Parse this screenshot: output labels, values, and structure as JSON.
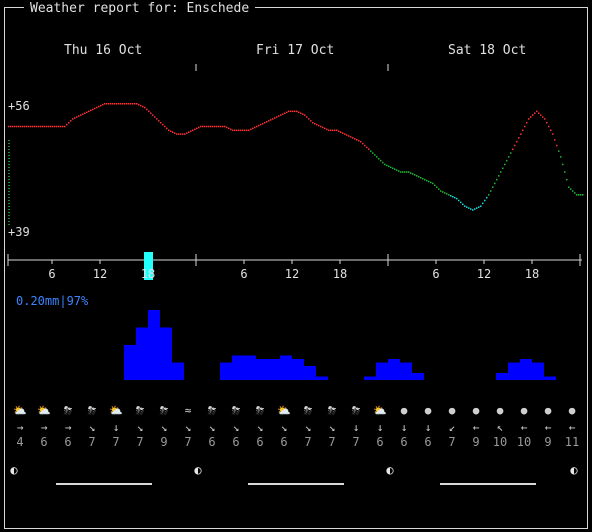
{
  "window": {
    "title": "Weather report for: Enschede"
  },
  "days": [
    "Thu 16 Oct",
    "Fri 17 Oct",
    "Sat 18 Oct"
  ],
  "temperature": {
    "max_label": "+56",
    "min_label": "+39"
  },
  "hour_labels": [
    "6",
    "12",
    "18",
    "6",
    "12",
    "18",
    "6",
    "12",
    "18"
  ],
  "precip": {
    "summary": "0.20mm|97%"
  },
  "wind": {
    "icons": [
      "cloud-sun",
      "cloud-sun",
      "cloud-rain",
      "cloud-rain",
      "cloud-sun",
      "cloud-rain",
      "cloud-rain",
      "mist",
      "cloud-rain",
      "cloud-rain",
      "cloud-rain",
      "cloud-sun",
      "cloud-rain",
      "cloud-rain",
      "cloud-rain",
      "cloud-sun",
      "moon",
      "moon",
      "moon",
      "moon",
      "moon",
      "moon",
      "moon",
      "moon"
    ],
    "glyphs": [
      "⛅",
      "⛅",
      "⛈",
      "⛈",
      "⛅",
      "⛈",
      "⛈",
      "≈",
      "⛈",
      "⛈",
      "⛈",
      "⛅",
      "⛈",
      "⛈",
      "⛈",
      "⛅",
      "●",
      "●",
      "●",
      "●",
      "●",
      "●",
      "●",
      "●"
    ],
    "arrows": [
      "→",
      "→",
      "→",
      "↘",
      "↓",
      "↘",
      "↘",
      "↘",
      "↘",
      "↘",
      "↘",
      "↘",
      "↘",
      "↘",
      "↓",
      "↓",
      "↓",
      "↓",
      "↙",
      "←",
      "↖",
      "←",
      "←",
      "←"
    ],
    "speeds": [
      "4",
      "6",
      "6",
      "7",
      "7",
      "7",
      "9",
      "7",
      "6",
      "6",
      "6",
      "6",
      "7",
      "7",
      "7",
      "6",
      "6",
      "6",
      "7",
      "9",
      "10",
      "10",
      "9",
      "11"
    ]
  },
  "moon": {
    "glyphs": [
      "◐",
      "◐",
      "◐",
      "◐"
    ]
  },
  "colors": {
    "warm": "#ff3333",
    "mild": "#22bb33",
    "cool": "#22dddd",
    "rain": "#0000ff",
    "now": "#22ffff",
    "accent": "#3a86ff"
  },
  "chart_data": {
    "type": "line",
    "title": "Weather report for: Enschede",
    "series": [
      {
        "x": [
          0,
          1,
          2,
          3,
          4,
          5,
          6,
          7,
          8,
          9,
          10,
          11,
          12,
          13,
          14,
          15,
          16,
          17,
          18,
          19,
          20,
          21,
          22,
          23,
          24,
          25,
          26,
          27,
          28,
          29,
          30,
          31,
          32,
          33,
          34,
          35,
          36,
          37,
          38,
          39,
          40,
          41,
          42,
          43,
          44,
          45,
          46,
          47,
          48,
          49,
          50,
          51,
          52,
          53,
          54,
          55,
          56,
          57,
          58,
          59,
          60,
          61,
          62,
          63,
          64,
          65,
          66,
          67,
          68,
          69,
          70,
          71
        ],
        "values": [
          53,
          53,
          53,
          53,
          53,
          53,
          53,
          53,
          54,
          54.5,
          55,
          55.5,
          56,
          56,
          56,
          56,
          56,
          55.5,
          54.5,
          53.5,
          52.5,
          52,
          52,
          52.5,
          53,
          53,
          53,
          53,
          52.5,
          52.5,
          52.5,
          53,
          53.5,
          54,
          54.5,
          55,
          55,
          54.5,
          53.5,
          53,
          52.5,
          52.5,
          52,
          51.5,
          51,
          50,
          49,
          48,
          47.5,
          47,
          47,
          46.5,
          46,
          45.5,
          44.5,
          44,
          43.5,
          42.5,
          42,
          42.5,
          44,
          46,
          48,
          50,
          52,
          54,
          55,
          54,
          52,
          49,
          45,
          44
        ]
      }
    ],
    "ylim": [
      39,
      56
    ],
    "precip_bars": [
      0,
      0,
      0,
      0,
      0,
      0,
      0,
      0.1,
      0.15,
      0.2,
      0.15,
      0.05,
      0,
      0,
      0,
      0.05,
      0.07,
      0.07,
      0.06,
      0.06,
      0.07,
      0.06,
      0.04,
      0.01,
      0,
      0,
      0,
      0.01,
      0.05,
      0.06,
      0.05,
      0.02,
      0,
      0,
      0,
      0,
      0,
      0,
      0.02,
      0.05,
      0.06,
      0.05,
      0.01,
      0,
      0,
      0,
      0,
      0
    ]
  }
}
